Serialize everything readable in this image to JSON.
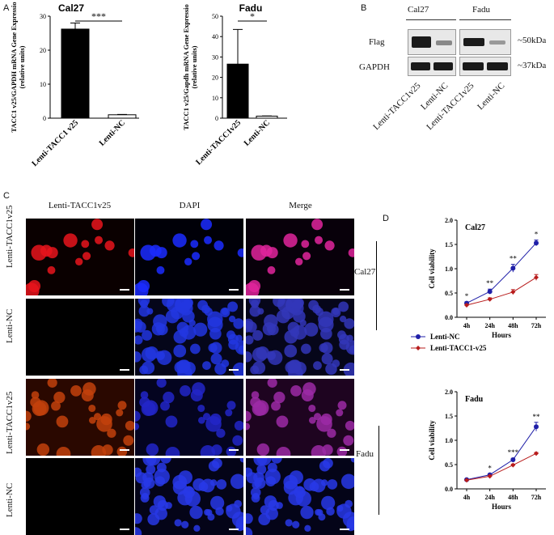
{
  "panels": {
    "A": "A",
    "B": "B",
    "C": "C",
    "D": "D"
  },
  "panel_a": {
    "chart_data": [
      {
        "type": "bar",
        "title": "Cal27",
        "ylabel": "TACC1 v25/GAPDH mRNA Gene Expressio (relative units)",
        "categories": [
          "Lenti-TACC1 v25",
          "Lenti-NC"
        ],
        "values": [
          26.2,
          1.0
        ],
        "errors": [
          1.8,
          0.1
        ],
        "ylim": [
          0,
          30
        ],
        "yticks": [
          "0",
          "10",
          "20",
          "30"
        ],
        "significance": "***",
        "colors": [
          "#000000",
          "#ffffff"
        ]
      },
      {
        "type": "bar",
        "title": "Fadu",
        "ylabel": "TACC1 v25/Gapdh mRNA Gene Expressio (relative units)",
        "categories": [
          "Lenti-TACC1v25",
          "Lenti-NC"
        ],
        "values": [
          26.5,
          1.0
        ],
        "errors": [
          17,
          0.1
        ],
        "ylim": [
          0,
          50
        ],
        "yticks": [
          "0",
          "10",
          "20",
          "30",
          "40",
          "50"
        ],
        "significance": "*",
        "colors": [
          "#000000",
          "#ffffff"
        ]
      }
    ]
  },
  "panel_b": {
    "cell_lines": [
      "Cal27",
      "Fadu"
    ],
    "proteins": [
      "Flag",
      "GAPDH"
    ],
    "sizes": [
      "~50kDa",
      "~37kDa"
    ],
    "lanes": [
      "Lenti-TACC1v25",
      "Lenti-NC",
      "Lenti-TACC1v25",
      "Lenti-NC"
    ]
  },
  "panel_c": {
    "columns": [
      "Lenti-TACC1v25",
      "DAPI",
      "Merge"
    ],
    "rows": [
      "Lenti-TACC1v25",
      "Lenti-NC",
      "Lenti-TACC1v25",
      "Lenti-NC"
    ],
    "groups": [
      "Cal27",
      "Fadu"
    ]
  },
  "panel_d": {
    "legend": [
      {
        "name": "Lenti-NC",
        "color": "#1f1fa8"
      },
      {
        "name": "Lenti-TACC1-v25",
        "color": "#b81c1c"
      }
    ],
    "chart_data": [
      {
        "type": "line",
        "title": "Cal27",
        "xlabel": "Hours",
        "ylabel": "Cell viability",
        "x": [
          "4h",
          "24h",
          "48h",
          "72h"
        ],
        "ylim": [
          0,
          2.0
        ],
        "yticks": [
          "0.0",
          "0.5",
          "1.0",
          "1.5",
          "2.0"
        ],
        "series": [
          {
            "name": "Lenti-NC",
            "values": [
              0.29,
              0.53,
              1.01,
              1.53
            ],
            "errors": [
              0.03,
              0.05,
              0.08,
              0.06
            ],
            "color": "#1f1fa8"
          },
          {
            "name": "Lenti-TACC1-v25",
            "values": [
              0.25,
              0.37,
              0.52,
              0.82
            ],
            "errors": [
              0.02,
              0.03,
              0.05,
              0.06
            ],
            "color": "#b81c1c"
          }
        ],
        "significance": [
          "*",
          "**",
          "**",
          "*"
        ]
      },
      {
        "type": "line",
        "title": "Fadu",
        "xlabel": "Hours",
        "ylabel": "Cell viability",
        "x": [
          "4h",
          "24h",
          "48h",
          "72h"
        ],
        "ylim": [
          0,
          2.0
        ],
        "yticks": [
          "0.0",
          "0.5",
          "1.0",
          "1.5",
          "2.0"
        ],
        "series": [
          {
            "name": "Lenti-NC",
            "values": [
              0.19,
              0.29,
              0.6,
              1.28
            ],
            "errors": [
              0.01,
              0.02,
              0.03,
              0.09
            ],
            "color": "#1f1fa8"
          },
          {
            "name": "Lenti-TACC1-v25",
            "values": [
              0.18,
              0.26,
              0.49,
              0.73
            ],
            "errors": [
              0.01,
              0.02,
              0.02,
              0.02
            ],
            "color": "#b81c1c"
          }
        ],
        "significance": [
          "",
          "*",
          "***",
          "**"
        ]
      }
    ]
  }
}
